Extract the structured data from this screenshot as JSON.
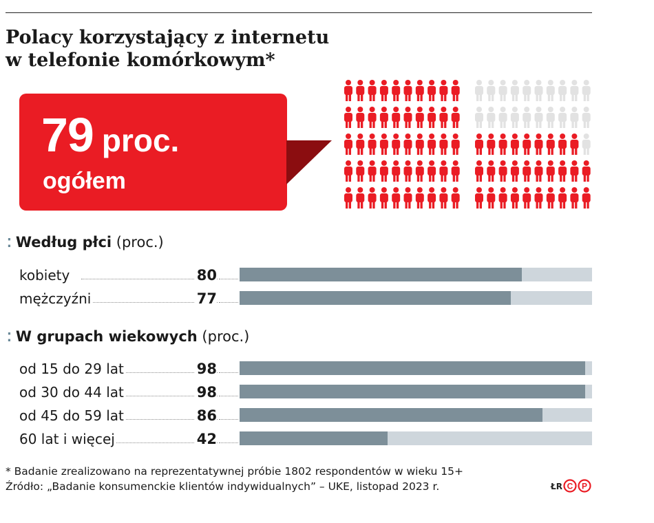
{
  "title_lines": [
    "Polacy korzystający z internetu",
    "w telefonie komórkowym*"
  ],
  "hero": {
    "value": "79",
    "unit": "proc.",
    "label": "ogółem",
    "percent": 79
  },
  "colors": {
    "red": "#ea1c24",
    "dark_red": "#8b0d10",
    "grey_person": "#e2e2e2",
    "bar_fill": "#7d8f99",
    "bar_track": "#ced6dc",
    "accent_dots": "#6b8a99"
  },
  "sections": [
    {
      "heading_bold": "Według płci",
      "heading_unit": "(proc.)"
    },
    {
      "heading_bold": "W grupach wiekowych",
      "heading_unit": "(proc.)"
    }
  ],
  "chart_data": {
    "type": "bar",
    "orientation": "horizontal",
    "unit": "proc.",
    "xlim": [
      0,
      100
    ],
    "groups": [
      {
        "name": "Według płci",
        "categories": [
          "kobiety",
          "mężczyźni"
        ],
        "values": [
          80,
          77
        ]
      },
      {
        "name": "W grupach wiekowych",
        "categories": [
          "od 15 do 29 lat",
          "od 30 do 44 lat",
          "od 45 do 59 lat",
          "60 lat i więcej"
        ],
        "values": [
          98,
          98,
          86,
          42
        ]
      }
    ]
  },
  "footnote": "* Badanie zrealizowano na reprezentatywnej próbie 1802 respondentów w wieku 15+",
  "source": "Źródło: „Badanie konsumenckie klientów indywidualnych” – UKE, listopad 2023 r.",
  "credit": "ŁR",
  "logo_text": "CP"
}
